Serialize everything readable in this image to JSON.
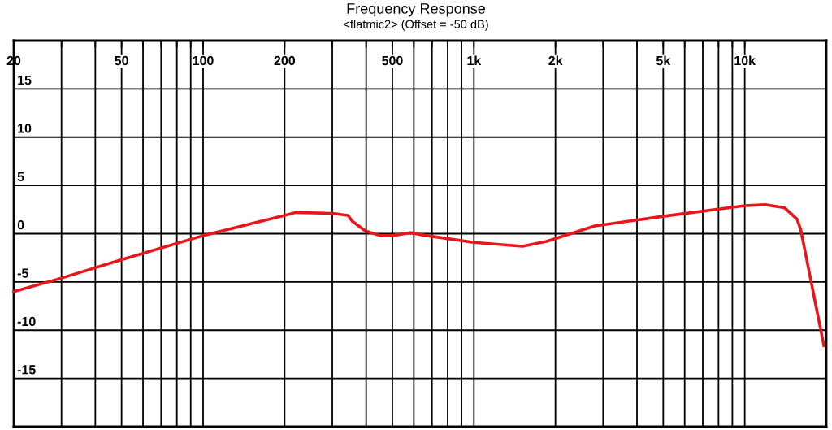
{
  "chart_data": {
    "type": "line",
    "title": "Frequency Response",
    "subtitle": "<flatmic2> (Offset = -50 dB)",
    "x": [
      20,
      30,
      50,
      100,
      200,
      220,
      300,
      343,
      355,
      397,
      451,
      500,
      583,
      668,
      1000,
      1512,
      1854,
      2000,
      2793,
      5000,
      10000,
      11900,
      14000,
      15600,
      16100,
      19600
    ],
    "series": [
      {
        "color": "#e8161b",
        "values": [
          -6.0,
          -4.6,
          -2.7,
          -0.2,
          1.9,
          2.2,
          2.1,
          1.9,
          1.3,
          0.3,
          -0.2,
          -0.2,
          0.1,
          -0.2,
          -0.9,
          -1.3,
          -0.8,
          -0.5,
          0.8,
          1.8,
          2.9,
          3.0,
          2.7,
          1.5,
          0.4,
          -11.6
        ]
      }
    ],
    "log": "x",
    "xlim": [
      20,
      20000
    ],
    "ylim": [
      -20,
      20
    ],
    "xticks": [
      20,
      {
        "value": 30,
        "label": null
      },
      {
        "value": 40,
        "label": null
      },
      50,
      {
        "value": 60,
        "label": null
      },
      {
        "value": 70,
        "label": null
      },
      {
        "value": 80,
        "label": null
      },
      {
        "value": 90,
        "label": null
      },
      100,
      200,
      {
        "value": 300,
        "label": null
      },
      {
        "value": 400,
        "label": null
      },
      500,
      {
        "value": 600,
        "label": null
      },
      {
        "value": 700,
        "label": null
      },
      {
        "value": 800,
        "label": null
      },
      {
        "value": 900,
        "label": null
      },
      {
        "value": 1000,
        "label": "1k"
      },
      {
        "value": 2000,
        "label": "2k"
      },
      {
        "value": 3000,
        "label": null
      },
      {
        "value": 4000,
        "label": null
      },
      {
        "value": 5000,
        "label": "5k"
      },
      {
        "value": 6000,
        "label": null
      },
      {
        "value": 7000,
        "label": null
      },
      {
        "value": 8000,
        "label": null
      },
      {
        "value": 9000,
        "label": null
      },
      {
        "value": 10000,
        "label": "10k"
      }
    ],
    "yticks": [
      {
        "value": 15,
        "label": "15"
      },
      {
        "value": 10,
        "label": "10"
      },
      {
        "value": 5,
        "label": "5"
      },
      {
        "value": 0,
        "label": "0"
      },
      {
        "value": -5,
        "label": "-5"
      },
      {
        "value": -10,
        "label": "-10"
      },
      {
        "value": -15,
        "label": "-15"
      }
    ],
    "grid": true,
    "marker": "none",
    "line_style": "solid"
  }
}
